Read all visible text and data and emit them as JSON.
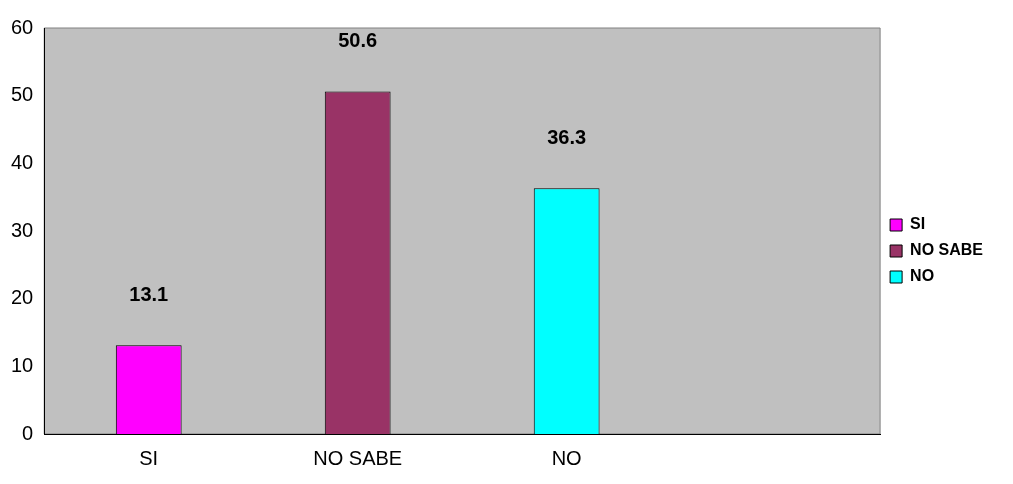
{
  "chart_data": {
    "type": "bar",
    "categories": [
      "SI",
      "NO SABE",
      "NO",
      null
    ],
    "series": [
      {
        "name": "SI",
        "color": "#ff00ff",
        "values": [
          13.1,
          null,
          null,
          null
        ]
      },
      {
        "name": "NO SABE",
        "color": "#993366",
        "values": [
          null,
          50.6,
          null,
          null
        ]
      },
      {
        "name": "NO",
        "color": "#00ffff",
        "values": [
          null,
          null,
          36.3,
          null
        ]
      }
    ],
    "ylim": [
      0,
      60
    ],
    "yticks": [
      0,
      10,
      20,
      30,
      40,
      50,
      60
    ],
    "grid": false,
    "legend": "right",
    "data_labels": true
  }
}
